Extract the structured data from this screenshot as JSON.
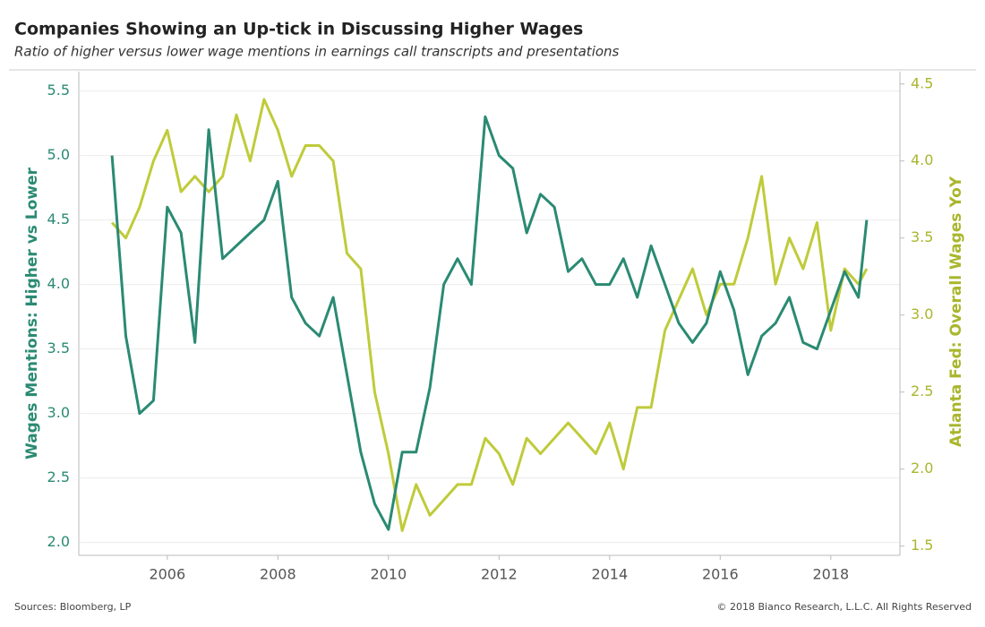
{
  "chart_data": {
    "type": "line",
    "title": "Companies Showing an Up-tick in Discussing Higher Wages",
    "subtitle": "Ratio of higher versus lower wage mentions in earnings call transcripts and presentations",
    "y_label": "Wages Mentions: Higher vs Lower",
    "y2_label": "Atlanta Fed: Overall Wages YoY",
    "source": "Sources: Bloomberg, LP",
    "copyright": "© 2018 Bianco Research, L.L.C. All Rights Reserved",
    "x": [
      2005.0,
      2005.25,
      2005.5,
      2005.75,
      2006.0,
      2006.25,
      2006.5,
      2006.75,
      2007.0,
      2007.25,
      2007.5,
      2007.75,
      2008.0,
      2008.25,
      2008.5,
      2008.75,
      2009.0,
      2009.25,
      2009.5,
      2009.75,
      2010.0,
      2010.25,
      2010.5,
      2010.75,
      2011.0,
      2011.25,
      2011.5,
      2011.75,
      2012.0,
      2012.25,
      2012.5,
      2012.75,
      2013.0,
      2013.25,
      2013.5,
      2013.75,
      2014.0,
      2014.25,
      2014.5,
      2014.75,
      2015.0,
      2015.25,
      2015.5,
      2015.75,
      2016.0,
      2016.25,
      2016.5,
      2016.75,
      2017.0,
      2017.25,
      2017.5,
      2017.75,
      2018.0,
      2018.25,
      2018.5,
      2018.65
    ],
    "series": [
      {
        "name": "Wages Mentions: Higher vs Lower",
        "color": "#2a8a73",
        "axis": "y",
        "values": [
          5.0,
          3.6,
          3.0,
          3.1,
          4.6,
          4.4,
          3.55,
          5.2,
          4.2,
          4.3,
          4.4,
          4.5,
          4.8,
          3.9,
          3.7,
          3.6,
          3.9,
          3.3,
          2.7,
          2.3,
          2.1,
          2.7,
          2.7,
          3.2,
          4.0,
          4.2,
          4.0,
          5.3,
          5.0,
          4.9,
          4.4,
          4.7,
          4.6,
          4.1,
          4.2,
          4.0,
          4.0,
          4.2,
          3.9,
          4.3,
          4.0,
          3.7,
          3.55,
          3.7,
          4.1,
          3.8,
          3.3,
          3.6,
          3.7,
          3.9,
          3.55,
          3.5,
          3.8,
          4.1,
          3.9,
          4.5
        ]
      },
      {
        "name": "Atlanta Fed: Overall Wages YoY",
        "color": "#bfcb3a",
        "axis": "y2",
        "values": [
          3.6,
          3.5,
          3.7,
          4.0,
          4.2,
          3.8,
          3.9,
          3.8,
          3.9,
          4.3,
          4.0,
          4.4,
          4.2,
          3.9,
          4.1,
          4.1,
          4.0,
          3.4,
          3.3,
          2.5,
          2.1,
          1.6,
          1.9,
          1.7,
          1.8,
          1.9,
          1.9,
          2.2,
          2.1,
          1.9,
          2.2,
          2.1,
          2.2,
          2.3,
          2.2,
          2.1,
          2.3,
          2.0,
          2.4,
          2.4,
          2.9,
          3.1,
          3.3,
          3.0,
          3.2,
          3.2,
          3.5,
          3.9,
          3.2,
          3.5,
          3.3,
          3.6,
          2.9,
          3.3,
          3.2,
          3.3
        ]
      }
    ],
    "xlim": [
      2004.4,
      2019.25
    ],
    "xticks": [
      2006,
      2008,
      2010,
      2012,
      2014,
      2016,
      2018
    ],
    "ylim": [
      1.9,
      5.65
    ],
    "yticks": [
      {
        "value": 2,
        "label": "2.0"
      },
      {
        "value": 2.5,
        "label": "2.5"
      },
      {
        "value": 3,
        "label": "3.0"
      },
      {
        "value": 3.5,
        "label": "3.5"
      },
      {
        "value": 4,
        "label": "4.0"
      },
      {
        "value": 4.5,
        "label": "4.5"
      },
      {
        "value": 5,
        "label": "5.0"
      },
      {
        "value": 5.5,
        "label": "5.5"
      }
    ],
    "y2lim": [
      1.44,
      4.58
    ],
    "y2ticks": [
      {
        "value": 1.5,
        "label": "1.5"
      },
      {
        "value": 2,
        "label": "2.0"
      },
      {
        "value": 2.5,
        "label": "2.5"
      },
      {
        "value": 3,
        "label": "3.0"
      },
      {
        "value": 3.5,
        "label": "3.5"
      },
      {
        "value": 4,
        "label": "4.0"
      },
      {
        "value": 4.5,
        "label": "4.5"
      }
    ],
    "grid": true
  }
}
